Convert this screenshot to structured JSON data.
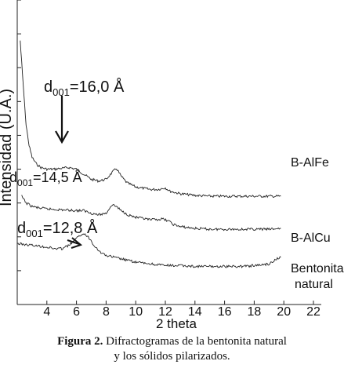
{
  "chart_data": {
    "type": "line",
    "title": "",
    "xlabel": "2 theta",
    "ylabel": "Intensidad (U.A.)",
    "xlim": [
      2,
      22
    ],
    "x_ticks": [
      "4",
      "6",
      "8",
      "10",
      "12",
      "14",
      "16",
      "18",
      "20",
      "22"
    ],
    "y_ticks_labeled": false,
    "grid": false,
    "series": [
      {
        "name": "B-AlFe",
        "points": [
          [
            2.2,
            15.6
          ],
          [
            2.4,
            13.0
          ],
          [
            2.6,
            10.6
          ],
          [
            2.8,
            9.4
          ],
          [
            3.0,
            8.7
          ],
          [
            3.3,
            8.3
          ],
          [
            3.6,
            8.1
          ],
          [
            4.0,
            8.0
          ],
          [
            4.5,
            8.0
          ],
          [
            5.0,
            8.05
          ],
          [
            5.5,
            8.1
          ],
          [
            6.0,
            8.0
          ],
          [
            6.5,
            7.7
          ],
          [
            7.0,
            7.4
          ],
          [
            7.5,
            7.3
          ],
          [
            8.0,
            7.4
          ],
          [
            8.4,
            7.8
          ],
          [
            8.7,
            8.05
          ],
          [
            9.0,
            7.6
          ],
          [
            9.4,
            7.2
          ],
          [
            10.0,
            6.95
          ],
          [
            11.0,
            6.8
          ],
          [
            11.5,
            6.8
          ],
          [
            12.0,
            6.9
          ],
          [
            12.3,
            6.7
          ],
          [
            13.0,
            6.55
          ],
          [
            14.0,
            6.45
          ],
          [
            15.0,
            6.4
          ],
          [
            16.0,
            6.4
          ],
          [
            17.0,
            6.4
          ],
          [
            18.0,
            6.4
          ],
          [
            19.0,
            6.4
          ],
          [
            19.8,
            6.4
          ]
        ]
      },
      {
        "name": "B-AlCu",
        "points": [
          [
            2.3,
            6.4
          ],
          [
            2.6,
            6.0
          ],
          [
            3.0,
            5.8
          ],
          [
            3.5,
            5.7
          ],
          [
            4.0,
            5.65
          ],
          [
            5.0,
            5.6
          ],
          [
            6.0,
            5.55
          ],
          [
            6.5,
            5.55
          ],
          [
            7.0,
            5.4
          ],
          [
            7.5,
            5.3
          ],
          [
            8.0,
            5.4
          ],
          [
            8.4,
            5.9
          ],
          [
            8.7,
            5.8
          ],
          [
            9.0,
            5.55
          ],
          [
            9.5,
            5.3
          ],
          [
            10.0,
            5.15
          ],
          [
            11.0,
            5.0
          ],
          [
            11.8,
            5.05
          ],
          [
            12.2,
            4.95
          ],
          [
            12.5,
            4.75
          ],
          [
            13.0,
            4.6
          ],
          [
            14.0,
            4.5
          ],
          [
            15.0,
            4.45
          ],
          [
            16.0,
            4.45
          ],
          [
            17.0,
            4.45
          ],
          [
            18.0,
            4.45
          ],
          [
            19.0,
            4.45
          ],
          [
            19.8,
            4.5
          ]
        ]
      },
      {
        "name": "Bentonita natural",
        "points": [
          [
            2.0,
            3.6
          ],
          [
            2.5,
            3.55
          ],
          [
            3.0,
            3.5
          ],
          [
            3.5,
            3.45
          ],
          [
            4.0,
            3.4
          ],
          [
            4.5,
            3.3
          ],
          [
            5.0,
            3.3
          ],
          [
            5.5,
            3.5
          ],
          [
            6.0,
            3.9
          ],
          [
            6.4,
            4.2
          ],
          [
            6.8,
            4.0
          ],
          [
            7.2,
            3.5
          ],
          [
            7.6,
            3.1
          ],
          [
            8.0,
            2.9
          ],
          [
            8.5,
            2.8
          ],
          [
            9.0,
            2.7
          ],
          [
            10.0,
            2.5
          ],
          [
            11.0,
            2.4
          ],
          [
            12.0,
            2.3
          ],
          [
            13.0,
            2.3
          ],
          [
            14.0,
            2.25
          ],
          [
            15.0,
            2.25
          ],
          [
            16.0,
            2.25
          ],
          [
            17.0,
            2.25
          ],
          [
            18.0,
            2.3
          ],
          [
            19.0,
            2.4
          ],
          [
            19.5,
            2.7
          ],
          [
            19.8,
            2.8
          ]
        ]
      }
    ],
    "labels": {
      "alfe": "B-AlFe",
      "alcu": "B-AlCu",
      "bent_line1": "Bentonita",
      "bent_line2": "natural"
    },
    "annotations": [
      {
        "prefix": "d",
        "sub": "001",
        "value": "=16,0 Å",
        "x": 5.0,
        "y": 8.0
      },
      {
        "prefix": "d",
        "sub": "001",
        "value": "=14,5 Å",
        "x": 6.1,
        "y": 5.6
      },
      {
        "prefix": "d",
        "sub": "001",
        "value": "=12,8 Å",
        "x": 6.3,
        "y": 4.2
      }
    ]
  },
  "caption": {
    "label": "Figura 2.",
    "line1": " Difractogramas de la bentonita natural",
    "line2": "y los sólidos pilarizados."
  }
}
